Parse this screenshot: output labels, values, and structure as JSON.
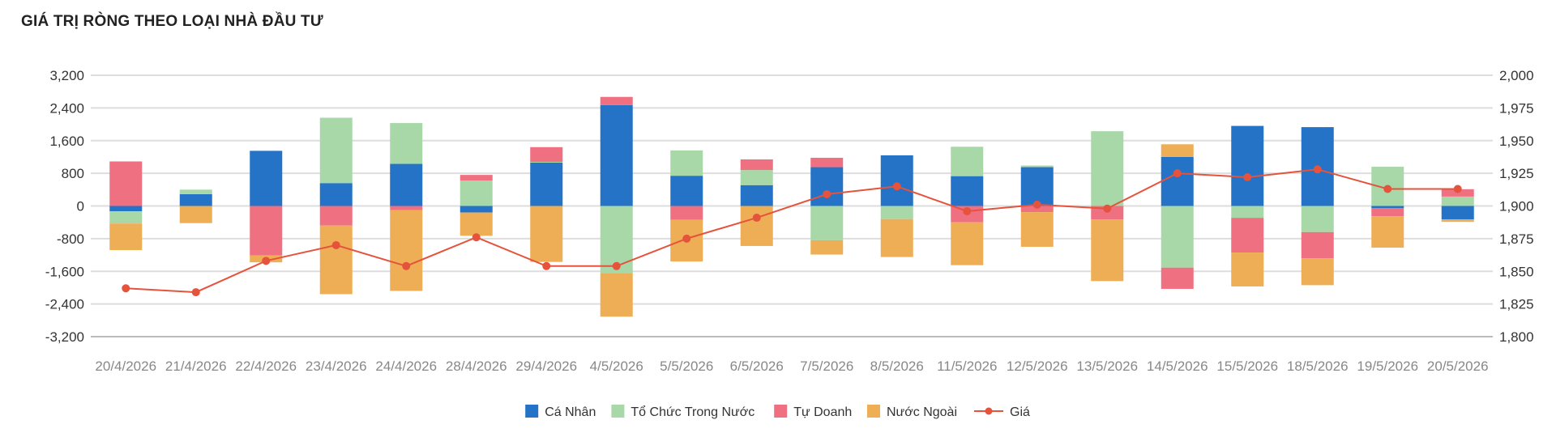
{
  "header": {
    "title": "GIÁ TRỊ RÒNG THEO LOẠI NHÀ ĐẦU TƯ"
  },
  "chart_data": {
    "type": "bar",
    "stacked": true,
    "title": "GIÁ TRỊ RÒNG THEO LOẠI NHÀ ĐẦU TƯ",
    "categories": [
      "20/4/2026",
      "21/4/2026",
      "22/4/2026",
      "23/4/2026",
      "24/4/2026",
      "28/4/2026",
      "29/4/2026",
      "4/5/2026",
      "5/5/2026",
      "6/5/2026",
      "7/5/2026",
      "8/5/2026",
      "11/5/2026",
      "12/5/2026",
      "13/5/2026",
      "14/5/2026",
      "15/5/2026",
      "18/5/2026",
      "19/5/2026",
      "20/5/2026"
    ],
    "series": [
      {
        "name": "Cá Nhân",
        "color": "#2573c7",
        "axis": "left",
        "values": [
          -130,
          290,
          1350,
          560,
          1030,
          -160,
          1060,
          2470,
          740,
          510,
          950,
          1240,
          730,
          950,
          0,
          1200,
          1960,
          1930,
          -50,
          -330
        ]
      },
      {
        "name": "Tổ Chức Trong Nước",
        "color": "#a8d8a8",
        "axis": "left",
        "values": [
          -300,
          110,
          0,
          1600,
          1000,
          620,
          20,
          -1640,
          620,
          370,
          -840,
          -320,
          720,
          40,
          1830,
          -1510,
          -290,
          -640,
          960,
          230
        ]
      },
      {
        "name": "Tự Doanh",
        "color": "#ef7080",
        "axis": "left",
        "values": [
          1090,
          0,
          -1210,
          -480,
          -100,
          140,
          360,
          200,
          -340,
          260,
          230,
          0,
          -400,
          -150,
          -330,
          -520,
          -850,
          -640,
          -200,
          180
        ]
      },
      {
        "name": "Nước Ngoài",
        "color": "#eeae55",
        "axis": "left",
        "values": [
          -650,
          -420,
          -170,
          -1680,
          -1980,
          -570,
          -1370,
          -1070,
          -1020,
          -980,
          -350,
          -930,
          -1050,
          -850,
          -1510,
          310,
          -830,
          -660,
          -770,
          -60
        ]
      },
      {
        "name": "Giá",
        "color": "#e5533d",
        "type": "line",
        "axis": "right",
        "values": [
          1837,
          1834,
          1858,
          1870,
          1854,
          1876,
          1854,
          1854,
          1875,
          1891,
          1909,
          1915,
          1896,
          1901,
          1898,
          1925,
          1922,
          1928,
          1913,
          1913
        ]
      }
    ],
    "y_left": {
      "ticks": [
        "3,200",
        "2,400",
        "1,600",
        "800",
        "0",
        "-800",
        "-1,600",
        "-2,400",
        "-3,200"
      ],
      "min": -3200,
      "max": 3200
    },
    "y_right": {
      "ticks": [
        "2,000",
        "1,975",
        "1,950",
        "1,925",
        "1,900",
        "1,875",
        "1,850",
        "1,825",
        "1,800"
      ],
      "min": 1800,
      "max": 2000
    },
    "grid": true,
    "legend_position": "bottom"
  }
}
